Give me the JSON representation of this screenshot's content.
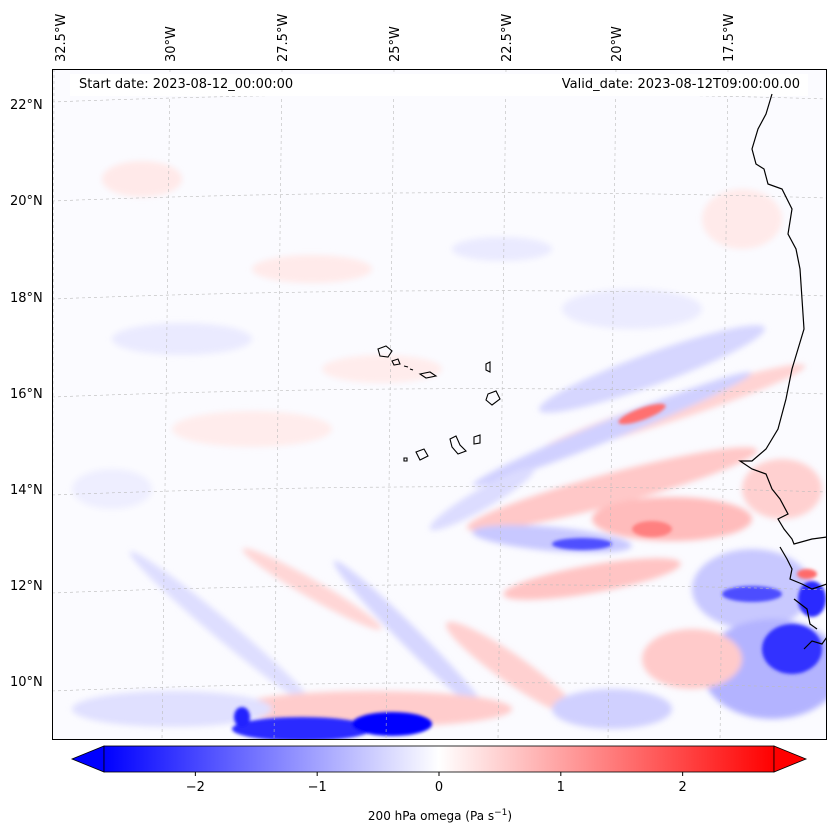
{
  "map": {
    "start_date": "Start date: 2023-08-12_00:00:00",
    "valid_date": "Valid_date: 2023-08-12T09:00:00.00",
    "lon_labels": [
      "32.5°W",
      "30°W",
      "27.5°W",
      "25°W",
      "22.5°W",
      "20°W",
      "17.5°W"
    ],
    "lat_labels": [
      "22°N",
      "20°N",
      "18°N",
      "16°N",
      "14°N",
      "12°N",
      "10°N"
    ]
  },
  "colorbar": {
    "label": "200 hPa omega (Pa s",
    "label_sup": "−1",
    "label_end": ")",
    "ticks": [
      "−2",
      "−1",
      "0",
      "1",
      "2"
    ],
    "range": [
      -2.75,
      2.75
    ],
    "colors": {
      "negative": "#0000ff",
      "zero": "#ffffff",
      "positive": "#ff0000"
    }
  }
}
